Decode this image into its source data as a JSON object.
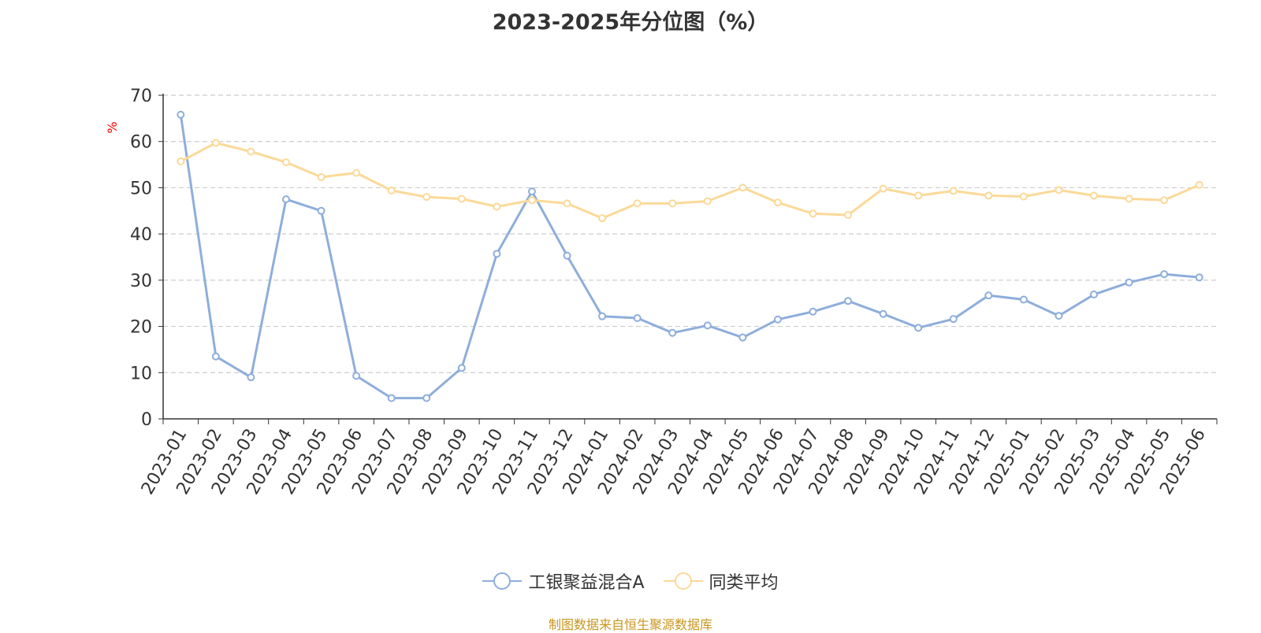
{
  "chart_data": {
    "type": "line",
    "title": "2023-2025年分位图（%）",
    "ylabel": "%",
    "ylim": [
      0,
      70
    ],
    "yticks": [
      "0",
      "10",
      "20",
      "30",
      "40",
      "50",
      "60",
      "70"
    ],
    "grid": true,
    "legend_position": "bottom",
    "categories": [
      "2023-01",
      "2023-02",
      "2023-03",
      "2023-04",
      "2023-05",
      "2023-06",
      "2023-07",
      "2023-08",
      "2023-09",
      "2023-10",
      "2023-11",
      "2023-12",
      "2024-01",
      "2024-02",
      "2024-03",
      "2024-04",
      "2024-05",
      "2024-06",
      "2024-07",
      "2024-08",
      "2024-09",
      "2024-10",
      "2024-11",
      "2024-12",
      "2025-01",
      "2025-02",
      "2025-03",
      "2025-04",
      "2025-05",
      "2025-06"
    ],
    "series": [
      {
        "name": "工银聚益混合A",
        "color": "#8eaedb",
        "values": [
          65.8,
          13.5,
          9.0,
          47.5,
          45.0,
          9.3,
          4.5,
          4.5,
          11.0,
          35.7,
          49.2,
          35.3,
          22.2,
          21.8,
          18.6,
          20.2,
          17.6,
          21.5,
          23.2,
          25.5,
          22.7,
          19.7,
          21.6,
          26.7,
          25.8,
          22.3,
          26.9,
          29.5,
          31.3,
          30.6
        ]
      },
      {
        "name": "同类平均",
        "color": "#fbd998",
        "values": [
          55.7,
          59.7,
          57.8,
          55.5,
          52.3,
          53.2,
          49.4,
          48.0,
          47.6,
          45.9,
          47.3,
          46.6,
          43.4,
          46.6,
          46.6,
          47.1,
          50.0,
          46.8,
          44.4,
          44.1,
          49.8,
          48.3,
          49.3,
          48.3,
          48.1,
          49.5,
          48.3,
          47.6,
          47.3,
          50.6
        ]
      }
    ]
  },
  "source_note": "制图数据来自恒生聚源数据库"
}
